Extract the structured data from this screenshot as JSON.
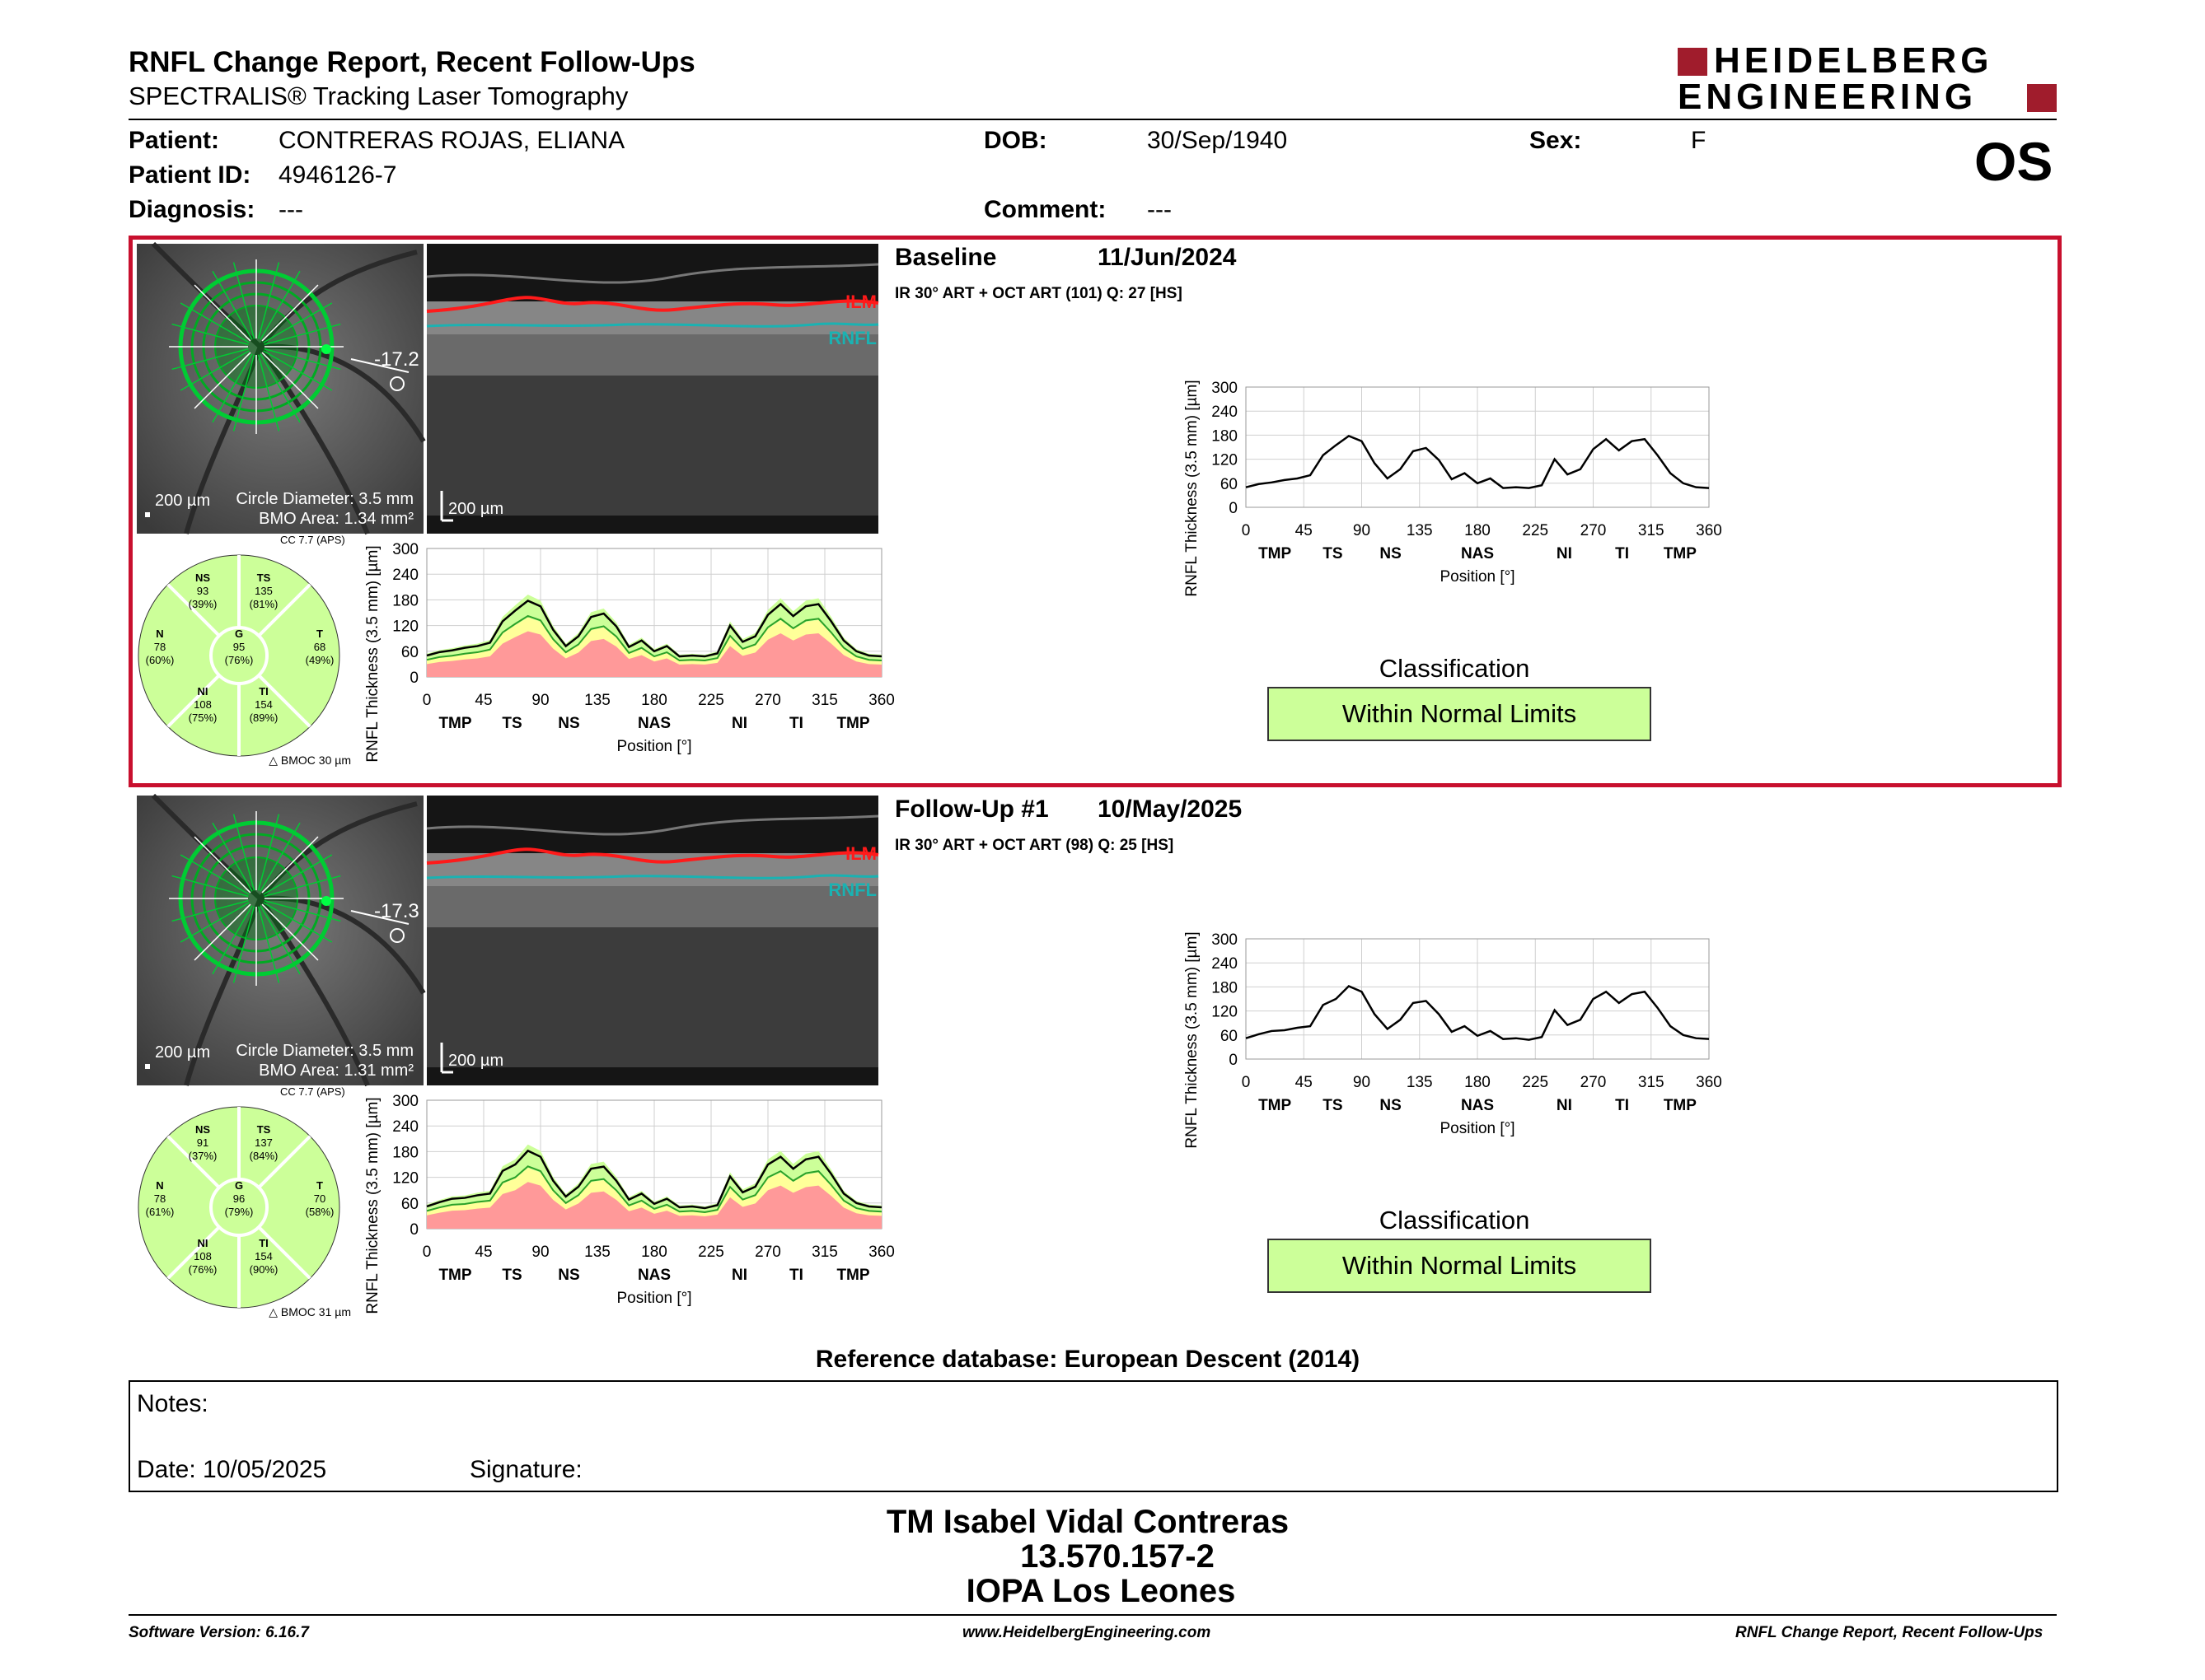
{
  "report": {
    "title": "RNFL Change Report, Recent Follow-Ups",
    "subtitle": "SPECTRALIS® Tracking Laser Tomography",
    "brand_line1": "HEIDELBERG",
    "brand_line2": "ENGINEERING",
    "eye": "OS"
  },
  "patient": {
    "patient_label": "Patient:",
    "patient_value": "CONTRERAS ROJAS, ELIANA",
    "dob_label": "DOB:",
    "dob_value": "30/Sep/1940",
    "sex_label": "Sex:",
    "sex_value": "F",
    "id_label": "Patient ID:",
    "id_value": "4946126-7",
    "diagnosis_label": "Diagnosis:",
    "diagnosis_value": "---",
    "comment_label": "Comment:",
    "comment_value": "---"
  },
  "common": {
    "scale_fundus": "200 µm",
    "scale_bscan": "200 µm",
    "circle_diameter": "Circle Diameter: 3.5 mm",
    "ilm": "ILM",
    "rnfl": "RNFL",
    "cc": "CC 7.7 (APS)",
    "ylabel": "RNFL Thickness (3.5 mm) [µm]",
    "xlabel": "Position [°]",
    "classification_label": "Classification",
    "y_ticks": [
      "300",
      "240",
      "180",
      "120",
      "60",
      "0"
    ],
    "x_ticks": [
      "0",
      "45",
      "90",
      "135",
      "180",
      "225",
      "270",
      "315",
      "360"
    ],
    "sector_ticks": [
      "TMP",
      "TS",
      "NS",
      "NAS",
      "NI",
      "TI",
      "TMP"
    ]
  },
  "exams": [
    {
      "name": "Baseline",
      "date": "11/Jun/2024",
      "scan_info": "IR 30° ART + OCT ART (101) Q: 27 [HS]",
      "angle": "-17.2",
      "bmo_area": "BMO Area: 1.34 mm²",
      "bmoc": "BMOC 30 µm",
      "classification": "Within Normal Limits",
      "sectors": {
        "NS": {
          "v": "93",
          "p": "(39%)"
        },
        "TS": {
          "v": "135",
          "p": "(81%)"
        },
        "N": {
          "v": "78",
          "p": "(60%)"
        },
        "G": {
          "v": "95",
          "p": "(76%)"
        },
        "T": {
          "v": "68",
          "p": "(49%)"
        },
        "NI": {
          "v": "108",
          "p": "(75%)"
        },
        "TI": {
          "v": "154",
          "p": "(89%)"
        }
      }
    },
    {
      "name": "Follow-Up #1",
      "date": "10/May/2025",
      "scan_info": "IR 30° ART + OCT ART (98) Q: 25 [HS]",
      "angle": "-17.3",
      "bmo_area": "BMO Area: 1.31 mm²",
      "bmoc": "BMOC 31 µm",
      "classification": "Within Normal Limits",
      "sectors": {
        "NS": {
          "v": "91",
          "p": "(37%)"
        },
        "TS": {
          "v": "137",
          "p": "(84%)"
        },
        "N": {
          "v": "78",
          "p": "(61%)"
        },
        "G": {
          "v": "96",
          "p": "(79%)"
        },
        "T": {
          "v": "70",
          "p": "(58%)"
        },
        "NI": {
          "v": "108",
          "p": "(76%)"
        },
        "TI": {
          "v": "154",
          "p": "(90%)"
        }
      }
    }
  ],
  "chart_data": [
    {
      "type": "line",
      "title": "",
      "xlabel": "Position [°]",
      "ylabel": "RNFL Thickness (3.5 mm) [µm]",
      "xlim": [
        0,
        360
      ],
      "ylim": [
        0,
        300
      ],
      "x": [
        0,
        10,
        20,
        30,
        40,
        50,
        60,
        70,
        80,
        90,
        100,
        110,
        120,
        130,
        140,
        150,
        160,
        170,
        180,
        190,
        200,
        210,
        220,
        230,
        240,
        250,
        260,
        270,
        280,
        290,
        300,
        310,
        320,
        330,
        340,
        350,
        360
      ],
      "series": [
        {
          "values": [
            50,
            58,
            62,
            68,
            72,
            80,
            130,
            155,
            178,
            165,
            110,
            72,
            95,
            140,
            148,
            118,
            70,
            85,
            60,
            72,
            48,
            50,
            48,
            55,
            120,
            82,
            95,
            145,
            170,
            142,
            165,
            170,
            130,
            85,
            60,
            50,
            48
          ]
        }
      ]
    },
    {
      "type": "line",
      "title": "",
      "xlabel": "Position [°]",
      "ylabel": "RNFL Thickness (3.5 mm) [µm]",
      "xlim": [
        0,
        360
      ],
      "ylim": [
        0,
        300
      ],
      "x": [
        0,
        10,
        20,
        30,
        40,
        50,
        60,
        70,
        80,
        90,
        100,
        110,
        120,
        130,
        140,
        150,
        160,
        170,
        180,
        190,
        200,
        210,
        220,
        230,
        240,
        250,
        260,
        270,
        280,
        290,
        300,
        310,
        320,
        330,
        340,
        350,
        360
      ],
      "series": [
        {
          "values": [
            52,
            62,
            70,
            72,
            78,
            82,
            135,
            150,
            182,
            168,
            112,
            75,
            98,
            140,
            145,
            112,
            68,
            82,
            58,
            70,
            50,
            52,
            48,
            55,
            122,
            85,
            98,
            150,
            168,
            140,
            162,
            168,
            128,
            82,
            60,
            52,
            50
          ]
        }
      ]
    }
  ],
  "reference_db": "Reference database: European Descent (2014)",
  "notes": {
    "notes_label": "Notes:",
    "date_label": "Date: 10/05/2025",
    "signature_label": "Signature:"
  },
  "signer": {
    "name": "TM Isabel Vidal Contreras",
    "id": "13.570.157-2",
    "place": "IOPA Los Leones"
  },
  "footer": {
    "left": "Software Version: 6.16.7",
    "center": "www.HeidelbergEngineering.com",
    "right": "RNFL Change Report, Recent Follow-Ups"
  }
}
